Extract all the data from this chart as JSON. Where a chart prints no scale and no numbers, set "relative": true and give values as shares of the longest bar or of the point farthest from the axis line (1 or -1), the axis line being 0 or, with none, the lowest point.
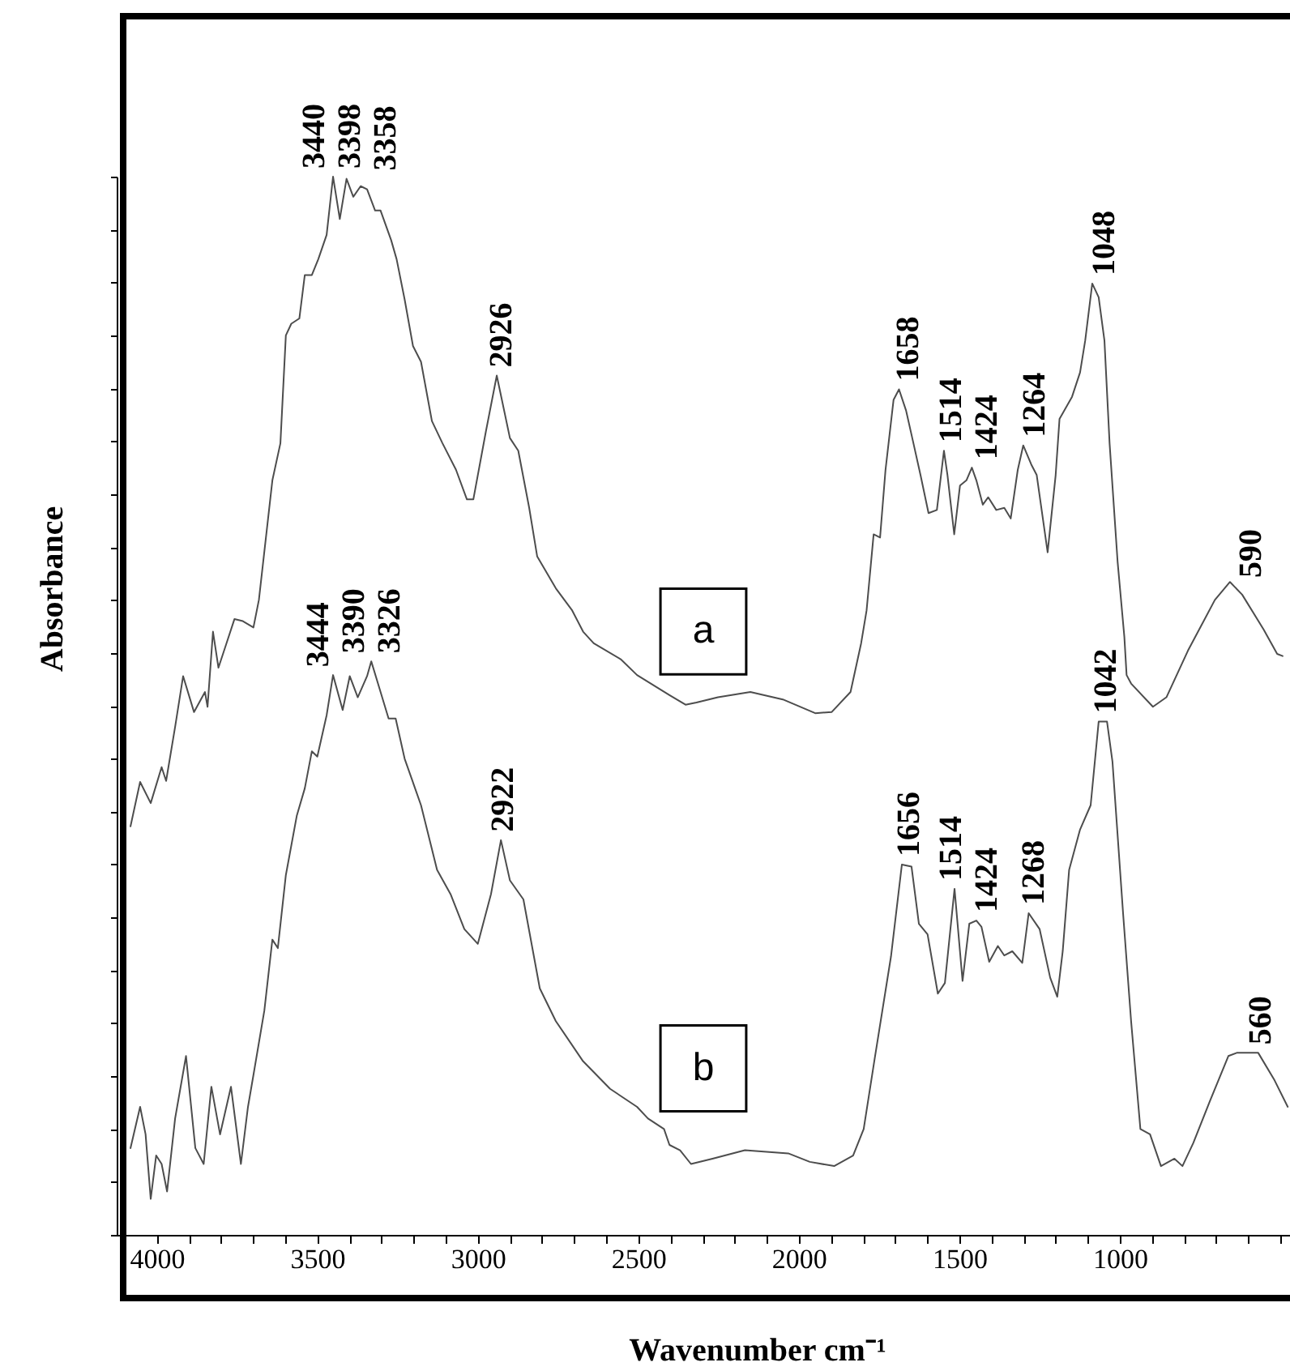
{
  "chart_data": {
    "type": "line",
    "xlabel": "Wavenumber cm⁻¹",
    "ylabel": "Absorbance",
    "relative": true,
    "xlim": [
      4125,
      470
    ],
    "xticks": [
      4000,
      {
        "value": 3900,
        "label": null
      },
      {
        "value": 3800,
        "label": null
      },
      {
        "value": 3700,
        "label": null
      },
      {
        "value": 3600,
        "label": null
      },
      3500,
      {
        "value": 3400,
        "label": null
      },
      {
        "value": 3300,
        "label": null
      },
      {
        "value": 3200,
        "label": null
      },
      {
        "value": 3100,
        "label": null
      },
      3000,
      {
        "value": 2900,
        "label": null
      },
      {
        "value": 2800,
        "label": null
      },
      {
        "value": 2700,
        "label": null
      },
      {
        "value": 2600,
        "label": null
      },
      2500,
      {
        "value": 2400,
        "label": null
      },
      {
        "value": 2300,
        "label": null
      },
      {
        "value": 2200,
        "label": null
      },
      {
        "value": 2100,
        "label": null
      },
      2000,
      {
        "value": 1900,
        "label": null
      },
      {
        "value": 1800,
        "label": null
      },
      {
        "value": 1700,
        "label": null
      },
      {
        "value": 1600,
        "label": null
      },
      1500,
      {
        "value": 1400,
        "label": null
      },
      {
        "value": 1300,
        "label": null
      },
      {
        "value": 1200,
        "label": null
      },
      {
        "value": 1100,
        "label": null
      },
      1000,
      {
        "value": 900,
        "label": null
      },
      {
        "value": 800,
        "label": null
      },
      {
        "value": 700,
        "label": null
      },
      {
        "value": 600,
        "label": null
      },
      {
        "value": 500,
        "label": null
      }
    ],
    "grid": false,
    "legend": false,
    "line_style": "solid",
    "series": [
      {
        "name": "a",
        "color": "#4d4d4d",
        "x": [
          4082,
          4052,
          4019,
          3985,
          3971,
          3943,
          3918,
          3884,
          3850,
          3842,
          3825,
          3808,
          3783,
          3758,
          3732,
          3699,
          3682,
          3640,
          3615,
          3598,
          3581,
          3556,
          3539,
          3517,
          3497,
          3471,
          3451,
          3430,
          3409,
          3388,
          3365,
          3345,
          3320,
          3303,
          3270,
          3253,
          3228,
          3202,
          3177,
          3143,
          3110,
          3068,
          3034,
          3014,
          2975,
          2941,
          2900,
          2874,
          2840,
          2815,
          2757,
          2706,
          2672,
          2639,
          2555,
          2504,
          2403,
          2353,
          2319,
          2252,
          2151,
          2050,
          1949,
          1898,
          1839,
          1806,
          1789,
          1767,
          1747,
          1730,
          1705,
          1688,
          1666,
          1643,
          1621,
          1596,
          1570,
          1548,
          1537,
          1516,
          1498,
          1478,
          1461,
          1447,
          1427,
          1410,
          1385,
          1360,
          1340,
          1318,
          1301,
          1276,
          1259,
          1225,
          1200,
          1188,
          1149,
          1124,
          1108,
          1086,
          1066,
          1048,
          1032,
          1007,
          986,
          979,
          965,
          897,
          855,
          788,
          704,
          657,
          619,
          552,
          510,
          493
        ],
        "values": [
          0.386,
          0.428,
          0.408,
          0.442,
          0.429,
          0.48,
          0.528,
          0.494,
          0.513,
          0.499,
          0.57,
          0.536,
          0.559,
          0.582,
          0.58,
          0.574,
          0.6,
          0.713,
          0.748,
          0.85,
          0.861,
          0.866,
          0.907,
          0.907,
          0.922,
          0.945,
          1.0,
          0.96,
          0.998,
          0.981,
          0.991,
          0.988,
          0.968,
          0.968,
          0.94,
          0.922,
          0.884,
          0.84,
          0.825,
          0.769,
          0.748,
          0.723,
          0.695,
          0.695,
          0.759,
          0.812,
          0.753,
          0.741,
          0.687,
          0.641,
          0.611,
          0.59,
          0.57,
          0.559,
          0.544,
          0.529,
          0.51,
          0.501,
          0.503,
          0.508,
          0.513,
          0.506,
          0.493,
          0.494,
          0.513,
          0.559,
          0.59,
          0.662,
          0.659,
          0.723,
          0.789,
          0.799,
          0.779,
          0.748,
          0.718,
          0.682,
          0.685,
          0.741,
          0.718,
          0.662,
          0.708,
          0.713,
          0.725,
          0.713,
          0.69,
          0.697,
          0.685,
          0.687,
          0.677,
          0.723,
          0.746,
          0.728,
          0.718,
          0.645,
          0.718,
          0.771,
          0.792,
          0.815,
          0.845,
          0.899,
          0.886,
          0.845,
          0.748,
          0.636,
          0.565,
          0.529,
          0.521,
          0.499,
          0.508,
          0.552,
          0.6,
          0.617,
          0.605,
          0.572,
          0.549,
          0.547
        ]
      },
      {
        "name": "b",
        "color": "#4d4d4d",
        "x": [
          4082,
          4052,
          4035,
          4019,
          4002,
          3985,
          3968,
          3943,
          3909,
          3880,
          3854,
          3830,
          3803,
          3769,
          3738,
          3716,
          3699,
          3665,
          3640,
          3623,
          3598,
          3564,
          3539,
          3517,
          3500,
          3471,
          3451,
          3421,
          3399,
          3374,
          3345,
          3332,
          3303,
          3278,
          3256,
          3228,
          3177,
          3127,
          3085,
          3042,
          3000,
          2959,
          2928,
          2900,
          2858,
          2807,
          2757,
          2672,
          2588,
          2504,
          2470,
          2420,
          2403,
          2370,
          2336,
          2269,
          2168,
          2033,
          1966,
          1890,
          1831,
          1798,
          1764,
          1713,
          1679,
          1649,
          1626,
          1599,
          1567,
          1545,
          1515,
          1490,
          1469,
          1447,
          1431,
          1407,
          1380,
          1360,
          1335,
          1304,
          1284,
          1250,
          1217,
          1195,
          1178,
          1158,
          1124,
          1091,
          1066,
          1040,
          1023,
          990,
          965,
          936,
          906,
          872,
          830,
          805,
          771,
          720,
          662,
          636,
          569,
          518,
          477
        ],
        "values": [
          0.082,
          0.121,
          0.095,
          0.034,
          0.075,
          0.067,
          0.041,
          0.11,
          0.169,
          0.082,
          0.067,
          0.14,
          0.095,
          0.14,
          0.067,
          0.121,
          0.151,
          0.212,
          0.279,
          0.271,
          0.34,
          0.396,
          0.422,
          0.457,
          0.452,
          0.491,
          0.529,
          0.496,
          0.528,
          0.508,
          0.528,
          0.542,
          0.513,
          0.488,
          0.488,
          0.45,
          0.406,
          0.345,
          0.322,
          0.289,
          0.275,
          0.322,
          0.373,
          0.335,
          0.317,
          0.233,
          0.202,
          0.164,
          0.138,
          0.121,
          0.11,
          0.1,
          0.085,
          0.08,
          0.067,
          0.072,
          0.08,
          0.077,
          0.069,
          0.065,
          0.075,
          0.1,
          0.166,
          0.263,
          0.35,
          0.348,
          0.294,
          0.284,
          0.228,
          0.238,
          0.327,
          0.24,
          0.294,
          0.297,
          0.291,
          0.258,
          0.273,
          0.264,
          0.268,
          0.257,
          0.304,
          0.289,
          0.243,
          0.225,
          0.268,
          0.345,
          0.383,
          0.406,
          0.485,
          0.485,
          0.447,
          0.304,
          0.202,
          0.1,
          0.095,
          0.065,
          0.072,
          0.065,
          0.087,
          0.126,
          0.169,
          0.172,
          0.172,
          0.146,
          0.121
        ]
      }
    ],
    "annotations": [
      {
        "text": "3440",
        "x": 3440,
        "y": 0.979
      },
      {
        "text": "3398",
        "x": 3398,
        "y": 0.988
      },
      {
        "text": "3358",
        "x": 3358,
        "y": 0.99
      },
      {
        "text": "2926",
        "x": 2926,
        "y": 0.775
      },
      {
        "text": "1658",
        "x": 1658,
        "y": 0.768
      },
      {
        "text": "1514",
        "x": 1514,
        "y": 0.667
      },
      {
        "text": "1424",
        "x": 1424,
        "y": 0.691
      },
      {
        "text": "1264",
        "x": 1264,
        "y": 0.721
      },
      {
        "text": "1048",
        "x": 1048,
        "y": 0.845
      },
      {
        "text": "590",
        "x": 590,
        "y": 0.591
      },
      {
        "text": "3444",
        "x": 3444,
        "y": 0.529
      },
      {
        "text": "3390",
        "x": 3390,
        "y": 0.523
      },
      {
        "text": "3326",
        "x": 3326,
        "y": 0.535
      },
      {
        "text": "2922",
        "x": 2922,
        "y": 0.367
      },
      {
        "text": "1656",
        "x": 1656,
        "y": 0.334
      },
      {
        "text": "1514",
        "x": 1514,
        "y": 0.324
      },
      {
        "text": "1424",
        "x": 1424,
        "y": 0.281
      },
      {
        "text": "1268",
        "x": 1268,
        "y": 0.296
      },
      {
        "text": "1042",
        "x": 1042,
        "y": 0.485
      },
      {
        "text": "560",
        "x": 560,
        "y": 0.169
      }
    ]
  }
}
